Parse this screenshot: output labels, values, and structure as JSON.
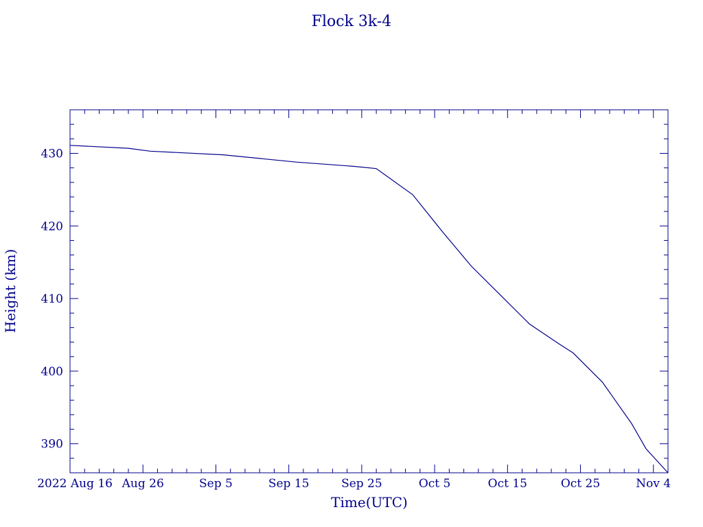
{
  "chart_data": {
    "type": "line",
    "title": "Flock 3k-4",
    "xlabel": "Time(UTC)",
    "ylabel": "Height (km)",
    "color": "#00008b",
    "x_scale": "date",
    "xlim": [
      "2022-08-16",
      "2022-11-06"
    ],
    "ylim": [
      386,
      436
    ],
    "grid": false,
    "x_ticks": [
      {
        "date": "2022-08-16",
        "label": "2022 Aug 16"
      },
      {
        "date": "2022-08-26",
        "label": "Aug 26"
      },
      {
        "date": "2022-09-05",
        "label": "Sep  5"
      },
      {
        "date": "2022-09-15",
        "label": "Sep 15"
      },
      {
        "date": "2022-09-25",
        "label": "Sep 25"
      },
      {
        "date": "2022-10-05",
        "label": "Oct  5"
      },
      {
        "date": "2022-10-15",
        "label": "Oct 15"
      },
      {
        "date": "2022-10-25",
        "label": "Oct 25"
      },
      {
        "date": "2022-11-04",
        "label": "Nov  4"
      }
    ],
    "y_ticks": [
      390,
      400,
      410,
      420,
      430
    ],
    "series": [
      {
        "x": [
          "2022-08-16",
          "2022-08-24",
          "2022-08-27",
          "2022-09-06",
          "2022-09-16",
          "2022-09-24",
          "2022-09-27",
          "2022-10-02",
          "2022-10-06",
          "2022-10-10",
          "2022-10-14",
          "2022-10-18",
          "2022-10-22",
          "2022-10-24",
          "2022-10-28",
          "2022-11-01",
          "2022-11-03",
          "2022-11-06"
        ],
        "y": [
          431.1,
          430.7,
          430.3,
          429.8,
          428.8,
          428.2,
          427.9,
          424.3,
          419.3,
          414.5,
          410.5,
          406.5,
          403.8,
          402.5,
          398.5,
          392.8,
          389.3,
          386.0
        ]
      }
    ]
  }
}
